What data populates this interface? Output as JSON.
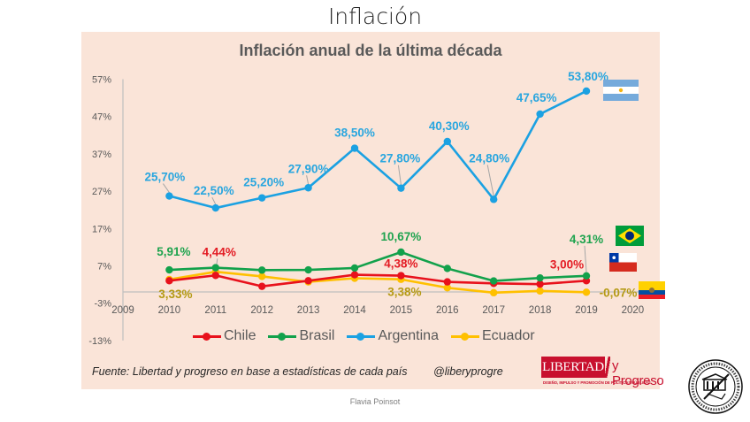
{
  "slide": {
    "title": "Inflación",
    "author": "Flavia Poinsot"
  },
  "footer": {
    "source": "Fuente: Libertad y progreso en base a estadísticas de cada país",
    "handle": "@liberyprogre",
    "logo_main": "LIBERTAD",
    "logo_secondary": "y Progreso",
    "logo_tagline": "DISEÑO, IMPULSO Y PROMOCIÓN DE POLÍTICAS PÚBLICAS"
  },
  "icons": {
    "seal": "university-seal-icon",
    "flags": [
      "argentina-flag-icon",
      "brazil-flag-icon",
      "chile-flag-icon",
      "ecuador-flag-icon"
    ]
  },
  "chart_data": {
    "type": "line",
    "title": "Inflación anual de la última década",
    "xlabel": "",
    "ylabel": "",
    "x_ticks": [
      "2009",
      "2010",
      "2011",
      "2012",
      "2013",
      "2014",
      "2015",
      "2016",
      "2017",
      "2018",
      "2019",
      "2020"
    ],
    "y_ticks": [
      "57%",
      "47%",
      "37%",
      "27%",
      "17%",
      "7%",
      "-3%",
      "-13%"
    ],
    "y_tick_values": [
      57,
      47,
      37,
      27,
      17,
      7,
      -3,
      -13
    ],
    "ylim": [
      -13,
      57
    ],
    "xlim": [
      2009,
      2020
    ],
    "grid": false,
    "legend_position": "bottom",
    "x": [
      2010,
      2011,
      2012,
      2013,
      2014,
      2015,
      2016,
      2017,
      2018,
      2019
    ],
    "series": [
      {
        "name": "Chile",
        "color": "#e8111c",
        "label_color": "#e31b23",
        "values": [
          3.0,
          4.44,
          1.5,
          3.0,
          4.6,
          4.38,
          2.7,
          2.3,
          2.1,
          3.0
        ]
      },
      {
        "name": "Brasil",
        "color": "#12a14b",
        "label_color": "#1ea34e",
        "values": [
          5.91,
          6.5,
          5.84,
          5.91,
          6.41,
          10.67,
          6.29,
          2.95,
          3.75,
          4.31
        ]
      },
      {
        "name": "Argentina",
        "color": "#1ba1e2",
        "label_color": "#29a6df",
        "values": [
          25.7,
          22.5,
          25.2,
          27.9,
          38.5,
          27.8,
          40.3,
          24.8,
          47.65,
          53.8
        ]
      },
      {
        "name": "Ecuador",
        "color": "#ffc000",
        "label_color": "#b59a15",
        "values": [
          3.33,
          5.41,
          4.16,
          2.7,
          3.67,
          3.38,
          1.12,
          -0.2,
          0.27,
          -0.07
        ]
      }
    ],
    "annotations": [
      {
        "series": "Argentina",
        "year": 2010,
        "text": "25,70%"
      },
      {
        "series": "Argentina",
        "year": 2011,
        "text": "22,50%"
      },
      {
        "series": "Argentina",
        "year": 2012,
        "text": "25,20%"
      },
      {
        "series": "Argentina",
        "year": 2013,
        "text": "27,90%"
      },
      {
        "series": "Argentina",
        "year": 2014,
        "text": "38,50%"
      },
      {
        "series": "Argentina",
        "year": 2015,
        "text": "27,80%"
      },
      {
        "series": "Argentina",
        "year": 2016,
        "text": "40,30%"
      },
      {
        "series": "Argentina",
        "year": 2017,
        "text": "24,80%"
      },
      {
        "series": "Argentina",
        "year": 2018,
        "text": "47,65%"
      },
      {
        "series": "Argentina",
        "year": 2019,
        "text": "53,80%"
      },
      {
        "series": "Brasil",
        "year": 2010,
        "text": "5,91%"
      },
      {
        "series": "Brasil",
        "year": 2015,
        "text": "10,67%"
      },
      {
        "series": "Brasil",
        "year": 2019,
        "text": "4,31%"
      },
      {
        "series": "Chile",
        "year": 2011,
        "text": "4,44%"
      },
      {
        "series": "Chile",
        "year": 2015,
        "text": "4,38%"
      },
      {
        "series": "Chile",
        "year": 2019,
        "text": "3,00%"
      },
      {
        "series": "Ecuador",
        "year": 2010,
        "text": "3,33%"
      },
      {
        "series": "Ecuador",
        "year": 2015,
        "text": "3,38%"
      },
      {
        "series": "Ecuador",
        "year": 2019,
        "text": "-0,07%"
      }
    ]
  }
}
